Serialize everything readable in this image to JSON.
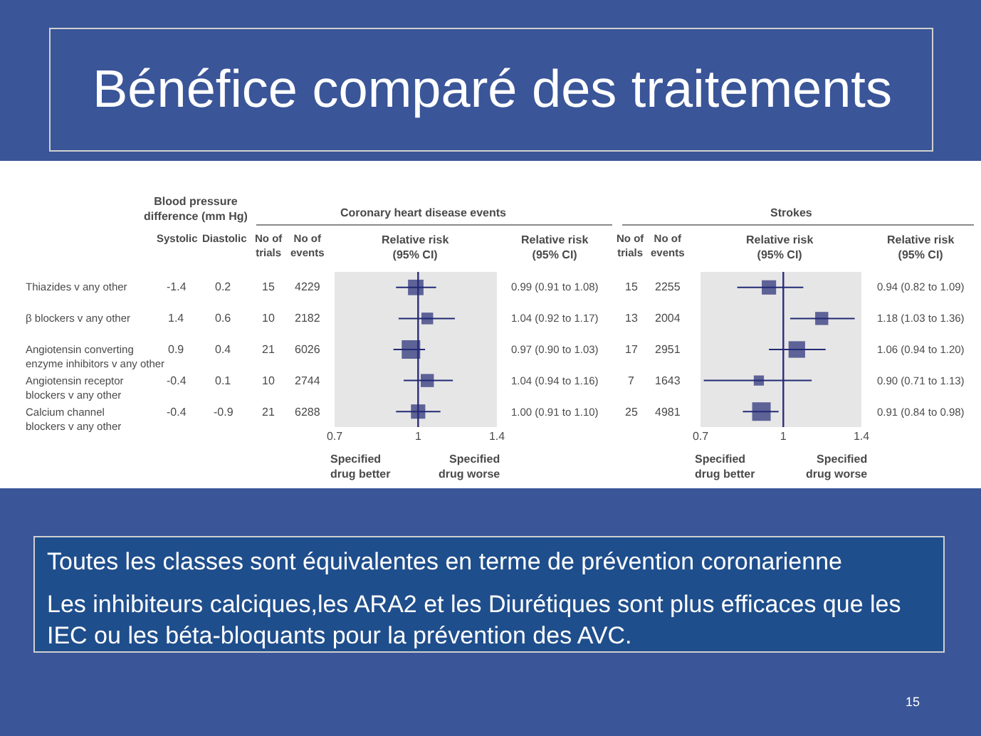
{
  "chart_data": [
    {
      "type": "other",
      "title": "Bénéfice comparé des traitements"
    },
    {
      "type": "other",
      "title": "Blood pressure difference (mm Hg)",
      "categories": [
        "Thiazides v any other",
        "β blockers v any other",
        "Angiotensin converting enzyme inhibitors v any other",
        "Angiotensin receptor blockers v any other",
        "Calcium channel blockers v any other"
      ],
      "series": [
        {
          "name": "Systolic",
          "values": [
            -1.4,
            1.4,
            0.9,
            -0.4,
            -0.4
          ]
        },
        {
          "name": "Diastolic",
          "values": [
            0.2,
            0.6,
            0.4,
            0.1,
            -0.9
          ]
        },
        {
          "name": "No of trials",
          "values": [
            15,
            10,
            21,
            10,
            21
          ]
        },
        {
          "name": "No of events",
          "values": [
            4229,
            2182,
            6026,
            2744,
            6288
          ]
        },
        {
          "name": "No of trials",
          "values": [
            15,
            13,
            17,
            7,
            25
          ]
        },
        {
          "name": "No of events",
          "values": [
            2255,
            2004,
            2951,
            1643,
            4981
          ]
        }
      ],
      "data_labels": true
    },
    {
      "type": "bubble",
      "title": "Coronary heart disease events",
      "xlabel": "Relative risk (95% CI)",
      "orientation": "horizontal",
      "categories": [
        null,
        null,
        null,
        null,
        null
      ],
      "values": [
        0.99,
        1.04,
        0.97,
        1.04,
        1.0
      ],
      "errors": [
        [
          0.91,
          1.08
        ],
        [
          0.92,
          1.17
        ],
        [
          0.9,
          1.03
        ],
        [
          0.94,
          1.16
        ],
        [
          0.91,
          1.1
        ]
      ],
      "sizes": [
        0.7,
        0.4,
        1,
        0.5,
        0.6
      ],
      "value_labels": [
        "0.99 (0.91 to 1.08)",
        "1.04 (0.92 to 1.17)",
        "0.97 (0.90 to 1.03)",
        "1.04 (0.94 to 1.16)",
        "1.00 (0.91 to 1.10)"
      ],
      "color": "#222a75",
      "marker": "square",
      "log": "x",
      "xlim": [
        0.7,
        1.4
      ],
      "xticks": [
        0.7,
        1,
        1.4
      ],
      "ref_lines": [
        {
          "axis": "x",
          "value": 1,
          "color": "#2b2d78"
        }
      ],
      "annotations": [
        "Relative risk (95% CI)",
        "Specified drug better",
        "Specified drug worse"
      ]
    },
    {
      "type": "bubble",
      "title": "Strokes",
      "xlabel": "Relative risk (95% CI)",
      "orientation": "horizontal",
      "categories": [
        null,
        null,
        null,
        null,
        null
      ],
      "values": [
        0.94,
        1.18,
        1.06,
        0.9,
        0.91
      ],
      "errors": [
        [
          0.82,
          1.09
        ],
        [
          1.03,
          1.36
        ],
        [
          0.94,
          1.2
        ],
        [
          0.71,
          1.13
        ],
        [
          0.84,
          0.98
        ]
      ],
      "sizes": [
        0.6,
        0.5,
        0.8,
        0.3,
        1
      ],
      "value_labels": [
        "0.94 (0.82 to 1.09)",
        "1.18 (1.03 to 1.36)",
        "1.06 (0.94 to 1.20)",
        "0.90 (0.71 to 1.13)",
        "0.91 (0.84 to 0.98)"
      ],
      "color": "#222a75",
      "marker": "square",
      "log": "x",
      "xlim": [
        0.7,
        1.4
      ],
      "xticks": [
        0.7,
        1,
        1.4
      ],
      "ref_lines": [
        {
          "axis": "x",
          "value": 1,
          "color": "#2b2d78"
        }
      ],
      "annotations": [
        "Relative risk (95% CI)",
        "Specified drug better",
        "Specified drug worse"
      ]
    },
    {
      "type": "other",
      "annotations": [
        "Toutes les classes sont équivalentes en terme de prévention coronarienne",
        "Les inhibiteurs calciques,les ARA2 et les Diurétiques sont plus efficaces que les IEC ou les béta-bloquants pour la prévention des AVC.",
        "15"
      ]
    }
  ]
}
